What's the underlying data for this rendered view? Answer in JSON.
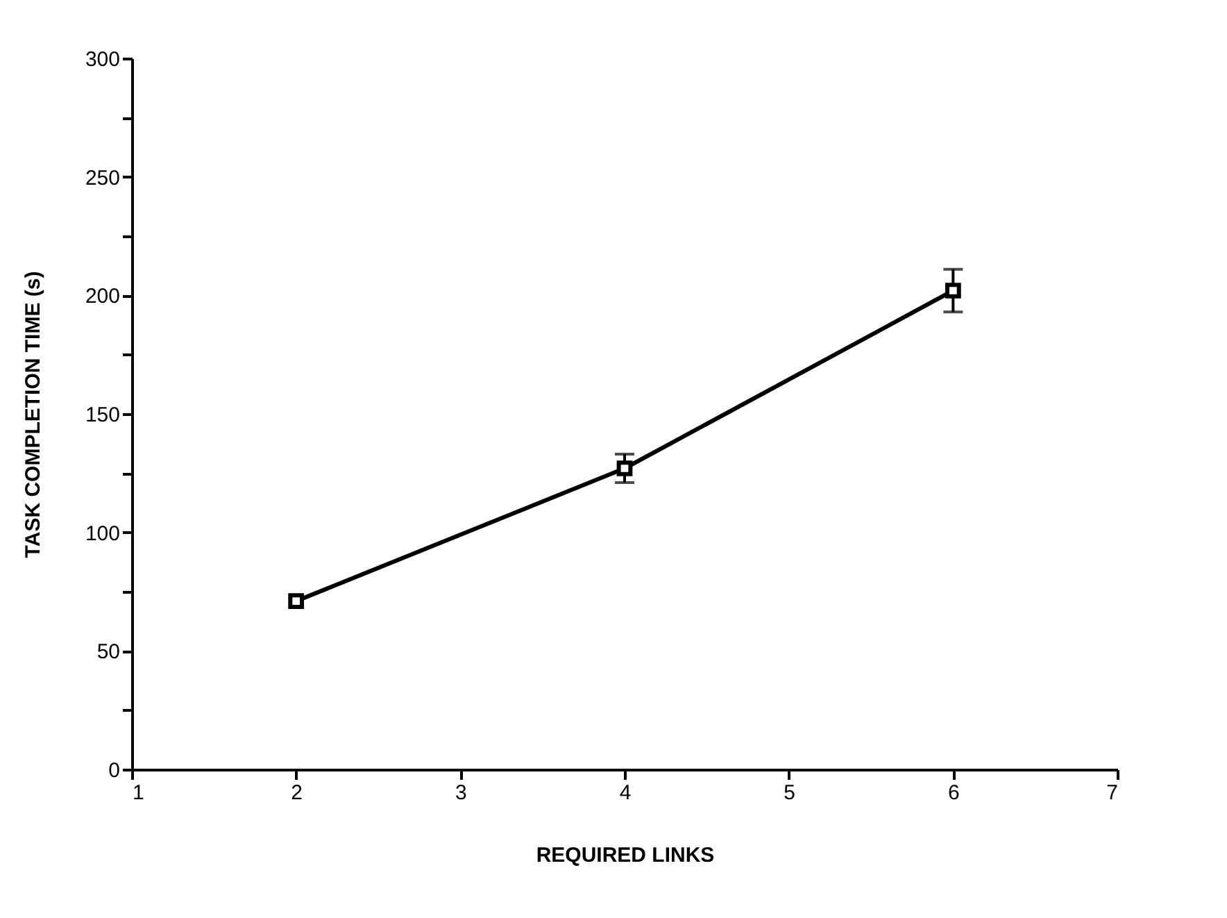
{
  "chart_data": {
    "type": "line",
    "xlabel": "REQUIRED LINKS",
    "ylabel": "TASK COMPLETION TIME (s)",
    "x": [
      2,
      4,
      6
    ],
    "series": [
      {
        "color": "#000000",
        "values": [
          71,
          127,
          202
        ],
        "errors": [
          null,
          6,
          9
        ]
      }
    ],
    "xlim": [
      1,
      7
    ],
    "xticks": [
      1,
      2,
      3,
      4,
      5,
      6,
      7
    ],
    "ylim": [
      0,
      300
    ],
    "yticks": [
      0,
      {
        "value": 25,
        "label": null
      },
      50,
      {
        "value": 75,
        "label": null
      },
      100,
      {
        "value": 125,
        "label": null
      },
      150,
      {
        "value": 175,
        "label": null
      },
      200,
      {
        "value": 225,
        "label": null
      },
      250,
      {
        "value": 275,
        "label": null
      },
      300
    ],
    "grid": false,
    "legend": false,
    "marker": "square",
    "line_style": "solid"
  }
}
